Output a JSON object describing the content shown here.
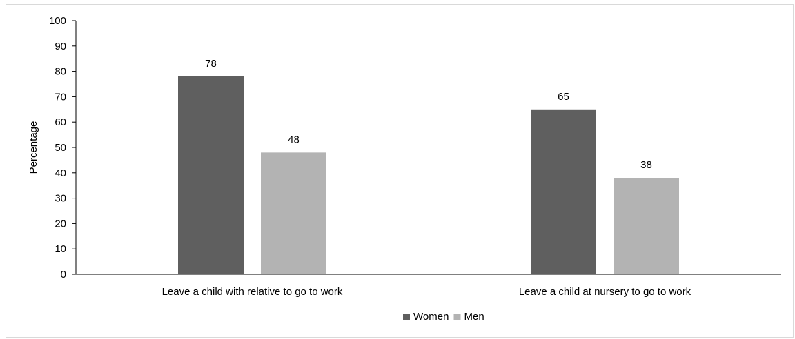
{
  "chart_data": {
    "type": "bar",
    "title": "",
    "xlabel": "",
    "ylabel": "Percentage",
    "ylim": [
      0,
      100
    ],
    "ytick_step": 10,
    "categories": [
      "Leave a child with relative to go to work",
      "Leave a child at nursery to go to work"
    ],
    "series": [
      {
        "name": "Women",
        "values": [
          78,
          65
        ],
        "color": "#5f5f5f"
      },
      {
        "name": "Men",
        "values": [
          48,
          38
        ],
        "color": "#b3b3b3"
      }
    ],
    "grid": false,
    "legend_position": "bottom"
  }
}
